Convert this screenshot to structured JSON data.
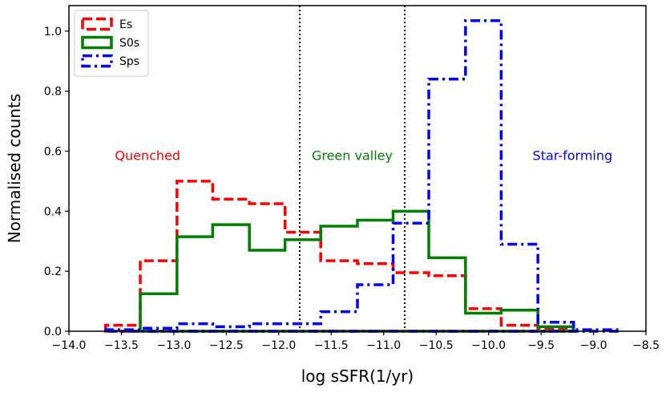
{
  "chart_data": {
    "type": "histogram",
    "xlabel": "log sSFR(1/yr)",
    "ylabel": "Normalised counts",
    "xlim": [
      -14.0,
      -8.5
    ],
    "ylim": [
      0.0,
      1.085
    ],
    "x_ticks": [
      -14.0,
      -13.5,
      -13.0,
      -12.5,
      -12.0,
      -11.5,
      -11.0,
      -10.5,
      -10.0,
      -9.5,
      -9.0,
      -8.5
    ],
    "x_tick_labels": [
      "−14.0",
      "−13.5",
      "−13.0",
      "−12.5",
      "−12.0",
      "−11.5",
      "−11.0",
      "−10.5",
      "−10.0",
      "−9.5",
      "−9.0",
      "−8.5"
    ],
    "y_ticks": [
      0.0,
      0.2,
      0.4,
      0.6,
      0.8,
      1.0
    ],
    "y_tick_labels": [
      "0.0",
      "0.2",
      "0.4",
      "0.6",
      "0.8",
      "1.0"
    ],
    "vlines": [
      -11.8,
      -10.8
    ],
    "legend": {
      "placement": "top-left"
    },
    "series": [
      {
        "name": "Es",
        "color": "#ff0000",
        "style": "dashed",
        "edges": [
          -13.65,
          -13.32,
          -12.97,
          -12.63,
          -12.28,
          -11.94,
          -11.6,
          -11.25,
          -10.91,
          -10.57,
          -10.22,
          -9.88,
          -9.53,
          -9.19
        ],
        "values": [
          0.02,
          0.235,
          0.5,
          0.44,
          0.425,
          0.33,
          0.235,
          0.225,
          0.195,
          0.185,
          0.075,
          0.02,
          0.01
        ]
      },
      {
        "name": "S0s",
        "color": "#008000",
        "style": "solid",
        "edges": [
          -13.32,
          -12.97,
          -12.63,
          -12.28,
          -11.94,
          -11.6,
          -11.25,
          -10.91,
          -10.57,
          -10.22,
          -9.88,
          -9.53,
          -9.19
        ],
        "values": [
          0.125,
          0.315,
          0.355,
          0.27,
          0.305,
          0.35,
          0.37,
          0.4,
          0.245,
          0.06,
          0.07,
          0.015
        ]
      },
      {
        "name": "Sps",
        "color": "#0000ff",
        "style": "dashdot",
        "edges": [
          -13.65,
          -13.32,
          -12.97,
          -12.63,
          -12.28,
          -11.94,
          -11.6,
          -11.25,
          -10.91,
          -10.57,
          -10.22,
          -9.88,
          -9.53,
          -9.19,
          -8.75
        ],
        "values": [
          0.005,
          0.01,
          0.025,
          0.015,
          0.025,
          0.025,
          0.065,
          0.155,
          0.36,
          0.84,
          1.035,
          0.29,
          0.03,
          0.005
        ]
      }
    ],
    "annotations": [
      {
        "text": "Quenched",
        "x": -13.25,
        "y": 0.57,
        "color": "#ff0000"
      },
      {
        "text": "Green valley",
        "x": -11.3,
        "y": 0.57,
        "color": "#008000"
      },
      {
        "text": "Star-forming",
        "x": -9.2,
        "y": 0.57,
        "color": "#0000ff"
      }
    ]
  }
}
